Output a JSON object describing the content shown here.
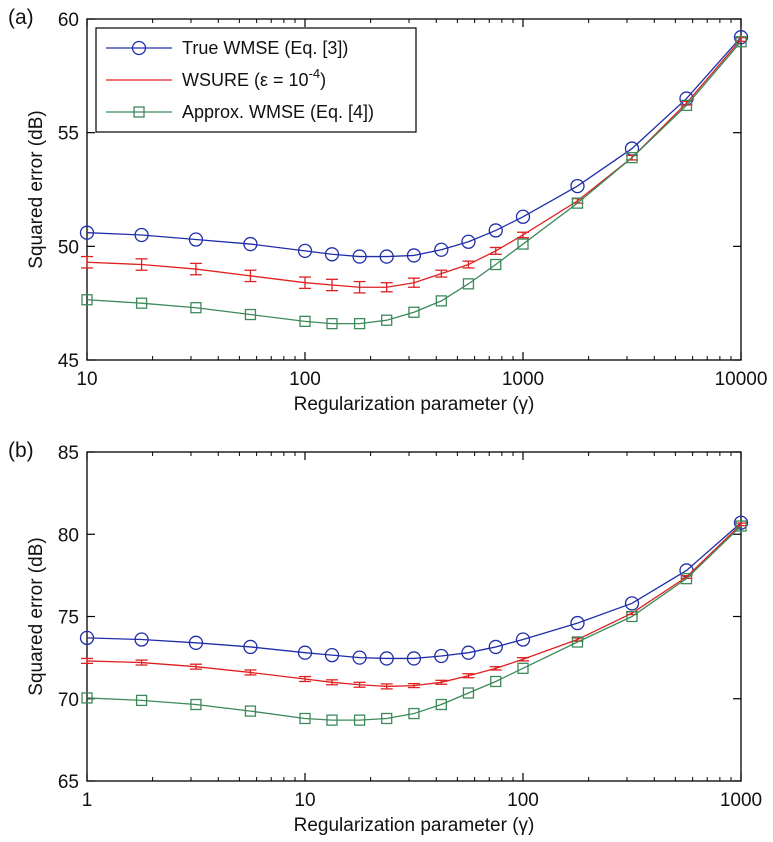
{
  "chart_data": [
    {
      "type": "line",
      "panel_label": "(a)",
      "xlabel": "Regularization parameter (γ)",
      "ylabel": "Squared error (dB)",
      "xscale": "log",
      "xlim": [
        10,
        10000
      ],
      "ylim": [
        45,
        60
      ],
      "xticks": [
        "10",
        "100",
        "1000",
        "10000"
      ],
      "yticks": [
        "45",
        "50",
        "55",
        "60"
      ],
      "legend": {
        "placement": "top-left",
        "entries": [
          {
            "label": "True WMSE (Eq. [3])",
            "color": "#1f2ea8",
            "marker": "circle"
          },
          {
            "label_main": "WSURE (ε = 10",
            "label_sup": "-4",
            "label_tail": ")",
            "color": "#e02020",
            "marker": "errorbar"
          },
          {
            "label": "Approx. WMSE (Eq. [4])",
            "color": "#3c8a5a",
            "marker": "square"
          }
        ]
      },
      "x": [
        10,
        17.8,
        31.6,
        56.2,
        100,
        133,
        178,
        237,
        316,
        422,
        562,
        750,
        1000,
        1778,
        3162,
        5623,
        10000
      ],
      "series": [
        {
          "name": "True WMSE (Eq. [3])",
          "color": "#1f2ea8",
          "marker": "circle",
          "values": [
            50.6,
            50.5,
            50.3,
            50.1,
            49.8,
            49.65,
            49.55,
            49.55,
            49.6,
            49.85,
            50.2,
            50.7,
            51.3,
            52.65,
            54.3,
            56.5,
            59.2
          ]
        },
        {
          "name": "WSURE (ε = 10^-4)",
          "color": "#e02020",
          "marker": "errorbar",
          "values": [
            49.3,
            49.2,
            49.0,
            48.7,
            48.4,
            48.3,
            48.2,
            48.2,
            48.4,
            48.8,
            49.2,
            49.8,
            50.5,
            52.0,
            53.9,
            56.3,
            59.1
          ],
          "errors": [
            0.25,
            0.25,
            0.25,
            0.25,
            0.25,
            0.25,
            0.25,
            0.2,
            0.2,
            0.15,
            0.15,
            0.15,
            0.12,
            0.1,
            0.1,
            0.08,
            0.08
          ]
        },
        {
          "name": "Approx. WMSE (Eq. [4])",
          "color": "#3c8a5a",
          "marker": "square",
          "values": [
            47.65,
            47.5,
            47.3,
            47.0,
            46.7,
            46.6,
            46.6,
            46.75,
            47.1,
            47.6,
            48.35,
            49.2,
            50.1,
            51.9,
            53.9,
            56.2,
            59.0
          ]
        }
      ]
    },
    {
      "type": "line",
      "panel_label": "(b)",
      "xlabel": "Regularization parameter (γ)",
      "ylabel": "Squared error (dB)",
      "xscale": "log",
      "xlim": [
        1,
        1000
      ],
      "ylim": [
        65,
        85
      ],
      "xticks": [
        "1",
        "10",
        "100",
        "1000"
      ],
      "yticks": [
        "65",
        "70",
        "75",
        "80",
        "85"
      ],
      "x": [
        1,
        1.78,
        3.16,
        5.62,
        10,
        13.3,
        17.8,
        23.7,
        31.6,
        42.2,
        56.2,
        75,
        100,
        177.8,
        316.2,
        562.3,
        1000
      ],
      "series": [
        {
          "name": "True WMSE (Eq. [3])",
          "color": "#1f2ea8",
          "marker": "circle",
          "values": [
            73.7,
            73.6,
            73.4,
            73.15,
            72.8,
            72.65,
            72.5,
            72.45,
            72.45,
            72.6,
            72.8,
            73.15,
            73.6,
            74.6,
            75.8,
            77.8,
            80.7
          ]
        },
        {
          "name": "WSURE (ε = 10^-4)",
          "color": "#e02020",
          "marker": "errorbar",
          "values": [
            72.3,
            72.2,
            71.95,
            71.6,
            71.2,
            71.0,
            70.85,
            70.75,
            70.8,
            71.0,
            71.4,
            71.85,
            72.4,
            73.6,
            75.2,
            77.4,
            80.6
          ],
          "errors": [
            0.15,
            0.15,
            0.15,
            0.15,
            0.15,
            0.15,
            0.15,
            0.15,
            0.12,
            0.12,
            0.12,
            0.1,
            0.1,
            0.1,
            0.08,
            0.08,
            0.08
          ]
        },
        {
          "name": "Approx. WMSE (Eq. [4])",
          "color": "#3c8a5a",
          "marker": "square",
          "values": [
            70.05,
            69.9,
            69.65,
            69.25,
            68.8,
            68.7,
            68.7,
            68.8,
            69.1,
            69.65,
            70.35,
            71.05,
            71.85,
            73.45,
            75.0,
            77.3,
            80.5
          ]
        }
      ]
    }
  ]
}
